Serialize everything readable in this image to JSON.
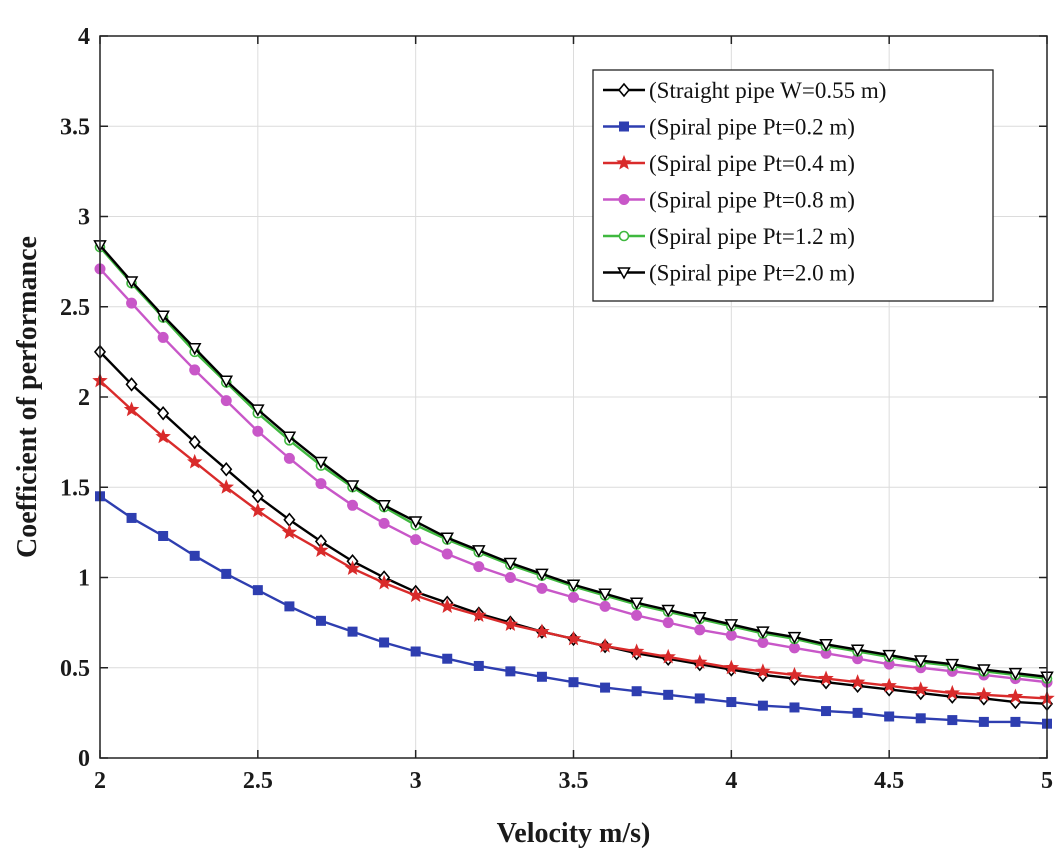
{
  "chart_data": {
    "type": "line",
    "title": "",
    "xlabel": "Velocity m/s)",
    "ylabel": "Coefficient of performance",
    "xlim": [
      2,
      5
    ],
    "ylim": [
      0,
      4
    ],
    "xticks": [
      2,
      2.5,
      3,
      3.5,
      4,
      4.5,
      5
    ],
    "xtick_labels": [
      "2",
      "2.5",
      "3",
      "3.5",
      "4",
      "4.5",
      "5"
    ],
    "yticks": [
      0,
      0.5,
      1,
      1.5,
      2,
      2.5,
      3,
      3.5,
      4
    ],
    "ytick_labels": [
      "0",
      "0.5",
      "1",
      "1.5",
      "2",
      "2.5",
      "3",
      "3.5",
      "4"
    ],
    "grid": true,
    "legend_position": "top-right",
    "x": [
      2.0,
      2.1,
      2.2,
      2.3,
      2.4,
      2.5,
      2.6,
      2.7,
      2.8,
      2.9,
      3.0,
      3.1,
      3.2,
      3.3,
      3.4,
      3.5,
      3.6,
      3.7,
      3.8,
      3.9,
      4.0,
      4.1,
      4.2,
      4.3,
      4.4,
      4.5,
      4.6,
      4.7,
      4.8,
      4.9,
      5.0
    ],
    "series": [
      {
        "name": "(Straight pipe W=0.55 m)",
        "color": "#000000",
        "marker": "diamond",
        "values": [
          2.25,
          2.07,
          1.91,
          1.75,
          1.6,
          1.45,
          1.32,
          1.2,
          1.09,
          1.0,
          0.92,
          0.86,
          0.8,
          0.75,
          0.7,
          0.66,
          0.62,
          0.58,
          0.55,
          0.52,
          0.49,
          0.46,
          0.44,
          0.42,
          0.4,
          0.38,
          0.36,
          0.34,
          0.33,
          0.31,
          0.3
        ]
      },
      {
        "name": "(Spiral pipe Pt=0.2 m)",
        "color": "#2e3eb0",
        "marker": "square",
        "values": [
          1.45,
          1.33,
          1.23,
          1.12,
          1.02,
          0.93,
          0.84,
          0.76,
          0.7,
          0.64,
          0.59,
          0.55,
          0.51,
          0.48,
          0.45,
          0.42,
          0.39,
          0.37,
          0.35,
          0.33,
          0.31,
          0.29,
          0.28,
          0.26,
          0.25,
          0.23,
          0.22,
          0.21,
          0.2,
          0.2,
          0.19
        ]
      },
      {
        "name": "(Spiral pipe Pt=0.4 m)",
        "color": "#d92b2b",
        "marker": "star",
        "values": [
          2.09,
          1.93,
          1.78,
          1.64,
          1.5,
          1.37,
          1.25,
          1.15,
          1.05,
          0.97,
          0.9,
          0.84,
          0.79,
          0.74,
          0.7,
          0.66,
          0.62,
          0.59,
          0.56,
          0.53,
          0.5,
          0.48,
          0.46,
          0.44,
          0.42,
          0.4,
          0.38,
          0.36,
          0.35,
          0.34,
          0.33
        ]
      },
      {
        "name": "(Spiral pipe Pt=0.8 m)",
        "color": "#c857c8",
        "marker": "circle",
        "values": [
          2.71,
          2.52,
          2.33,
          2.15,
          1.98,
          1.81,
          1.66,
          1.52,
          1.4,
          1.3,
          1.21,
          1.13,
          1.06,
          1.0,
          0.94,
          0.89,
          0.84,
          0.79,
          0.75,
          0.71,
          0.68,
          0.64,
          0.61,
          0.58,
          0.55,
          0.52,
          0.5,
          0.48,
          0.46,
          0.44,
          0.42
        ]
      },
      {
        "name": "(Spiral pipe Pt=1.2 m)",
        "color": "#3fb83f",
        "marker": "open-circle",
        "values": [
          2.83,
          2.63,
          2.44,
          2.25,
          2.08,
          1.91,
          1.76,
          1.62,
          1.5,
          1.39,
          1.29,
          1.21,
          1.14,
          1.07,
          1.01,
          0.95,
          0.9,
          0.85,
          0.81,
          0.77,
          0.73,
          0.69,
          0.66,
          0.62,
          0.59,
          0.56,
          0.53,
          0.51,
          0.48,
          0.46,
          0.44
        ]
      },
      {
        "name": "(Spiral pipe Pt=2.0 m)",
        "color": "#000000",
        "marker": "triangle-down",
        "values": [
          2.84,
          2.64,
          2.45,
          2.27,
          2.09,
          1.93,
          1.78,
          1.64,
          1.51,
          1.4,
          1.31,
          1.22,
          1.15,
          1.08,
          1.02,
          0.96,
          0.91,
          0.86,
          0.82,
          0.78,
          0.74,
          0.7,
          0.67,
          0.63,
          0.6,
          0.57,
          0.54,
          0.52,
          0.49,
          0.47,
          0.45
        ]
      }
    ]
  }
}
